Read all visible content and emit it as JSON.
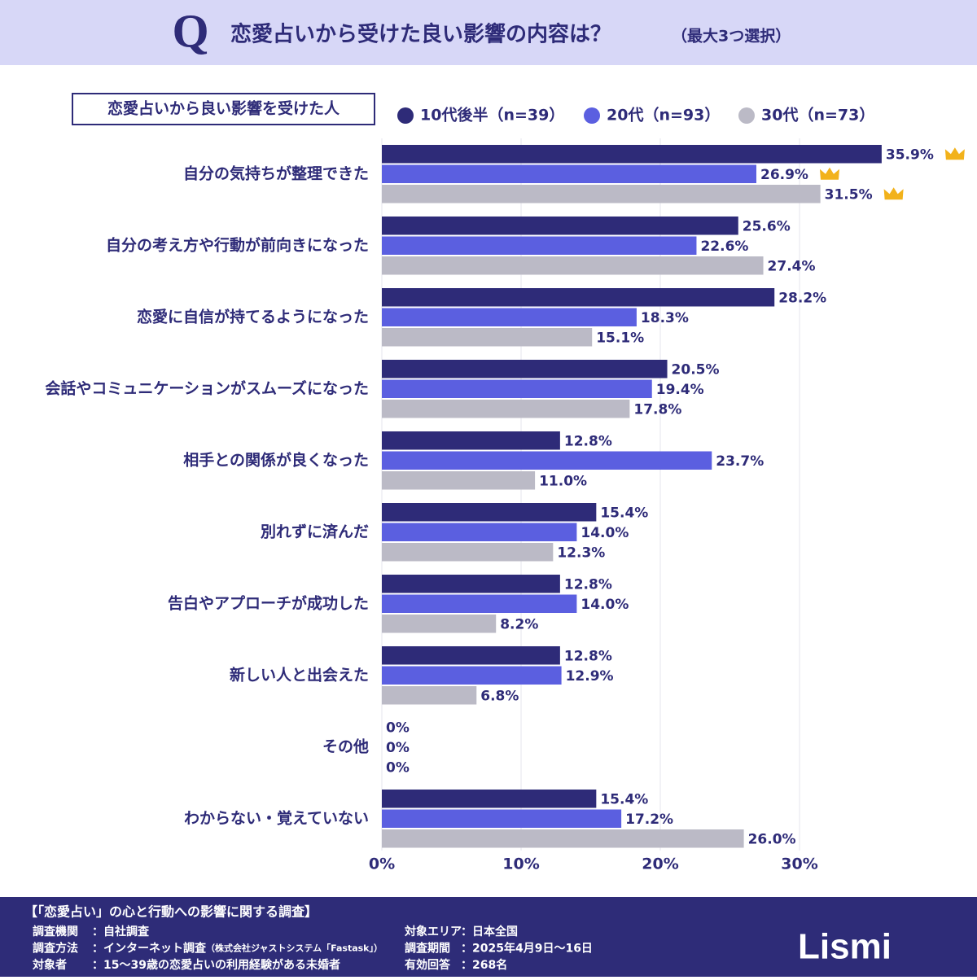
{
  "header": {
    "title": "恋愛占いから受けた良い影響の内容は？",
    "subtitle": "（最大3つ選択）",
    "icon": "Q"
  },
  "chart_data": {
    "type": "bar",
    "orientation": "horizontal",
    "panel_label": "恋愛占いから良い影響を受けた人",
    "categories": [
      "自分の気持ちが整理できた",
      "自分の考え方や行動が前向きになった",
      "恋愛に自信が持てるようになった",
      "会話やコミュニケーションがスムーズになった",
      "相手との関係が良くなった",
      "別れずに済んだ",
      "告白やアプローチが成功した",
      "新しい人と出会えた",
      "その他",
      "わからない・覚えていない"
    ],
    "series": [
      {
        "name": "10代後半（n=39）",
        "color": "#2e2b78",
        "values": [
          35.9,
          25.6,
          28.2,
          20.5,
          12.8,
          15.4,
          12.8,
          12.8,
          0,
          15.4
        ],
        "value_labels": [
          "35.9%",
          "25.6%",
          "28.2%",
          "20.5%",
          "12.8%",
          "15.4%",
          "12.8%",
          "12.8%",
          "0%",
          "15.4%"
        ]
      },
      {
        "name": "20代（n=93）",
        "color": "#5b5fe0",
        "values": [
          26.9,
          22.6,
          18.3,
          19.4,
          23.7,
          14.0,
          14.0,
          12.9,
          0,
          17.2
        ],
        "value_labels": [
          "26.9%",
          "22.6%",
          "18.3%",
          "19.4%",
          "23.7%",
          "14.0%",
          "14.0%",
          "12.9%",
          "0%",
          "17.2%"
        ]
      },
      {
        "name": "30代（n=73）",
        "color": "#bbbac6",
        "values": [
          31.5,
          27.4,
          15.1,
          17.8,
          11.0,
          12.3,
          8.2,
          6.8,
          0,
          26.0
        ],
        "value_labels": [
          "31.5%",
          "27.4%",
          "15.1%",
          "17.8%",
          "11.0%",
          "12.3%",
          "8.2%",
          "6.8%",
          "0%",
          "26.0%"
        ]
      }
    ],
    "xlim": [
      0,
      42
    ],
    "xticks": [
      {
        "value": 0,
        "label": "0%"
      },
      {
        "value": 10,
        "label": "10%"
      },
      {
        "value": 20,
        "label": "20%"
      },
      {
        "value": 30,
        "label": "30%"
      }
    ],
    "grid": true
  },
  "footer": {
    "title": "【「恋愛占い」の心と行動への影響に関する調査】",
    "left": [
      {
        "label": "調査機関",
        "value": "：自社調査"
      },
      {
        "label": "調査方法",
        "value": "：インターネット調査",
        "note": "（株式会社ジャストシステム「Fastask」）"
      },
      {
        "label": "対象者",
        "value": "：15〜39歳の恋愛占いの利用経験がある未婚者"
      }
    ],
    "right": [
      {
        "label": "対象エリア",
        "value": "：日本全国"
      },
      {
        "label": "調査期間",
        "value": "：2025年4月9日〜16日"
      },
      {
        "label": "有効回答",
        "value": "：268名"
      }
    ],
    "logo": "Lismi"
  }
}
